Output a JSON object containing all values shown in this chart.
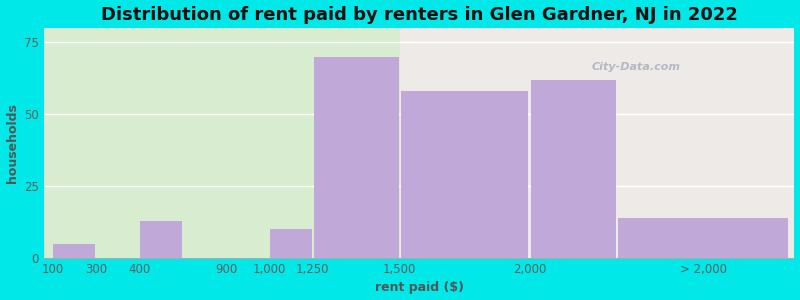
{
  "title": "Distribution of rent paid by renters in Glen Gardner, NJ in 2022",
  "xlabel": "rent paid ($)",
  "ylabel": "households",
  "bar_color": "#c0a8d8",
  "background_outer": "#00e8e8",
  "background_inner_left": "#d8ecd0",
  "background_inner_right": "#eeeae8",
  "yticks": [
    0,
    25,
    50,
    75
  ],
  "ylim": [
    0,
    80
  ],
  "tick_labels": [
    "100",
    "300",
    "400",
    "900",
    "1,000",
    "1,250",
    "1,500",
    "2,000",
    "> 2,000"
  ],
  "values": [
    5,
    0,
    13,
    0,
    10,
    70,
    58,
    62,
    14
  ],
  "title_fontsize": 13,
  "axis_label_fontsize": 9,
  "tick_fontsize": 8.5,
  "watermark_text": "City-Data.com"
}
